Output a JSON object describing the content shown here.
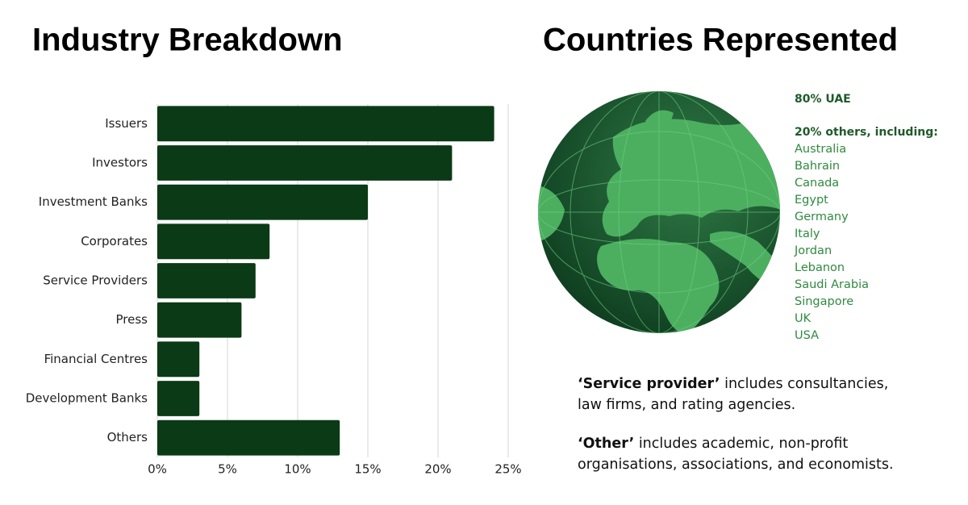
{
  "chart_data": {
    "type": "bar",
    "orientation": "horizontal",
    "title": "Industry Breakdown",
    "categories": [
      "Issuers",
      "Investors",
      "Investment Banks",
      "Corporates",
      "Service Providers",
      "Press",
      "Financial Centres",
      "Development Banks",
      "Others"
    ],
    "values": [
      24,
      21,
      15,
      8,
      7,
      6,
      3,
      3,
      13
    ],
    "color": "#0b3a16",
    "xlim": [
      0,
      25
    ],
    "xticks": [
      {
        "value": 0,
        "label": "0%"
      },
      {
        "value": 5,
        "label": "5%"
      },
      {
        "value": 10,
        "label": "10%"
      },
      {
        "value": 15,
        "label": "15%"
      },
      {
        "value": 20,
        "label": "20%"
      },
      {
        "value": 25,
        "label": "25%"
      }
    ],
    "grid": true
  },
  "countries": {
    "title": "Countries Represented",
    "uae": "80% UAE",
    "others_heading": "20% others, including:",
    "list": [
      "Australia",
      "Bahrain",
      "Canada",
      "Egypt",
      "Germany",
      "Italy",
      "Jordan",
      "Lebanon",
      "Saudi Arabia",
      "Singapore",
      "UK",
      "USA"
    ]
  },
  "notes": [
    {
      "term": "‘Service provider’",
      "text": "includes consultancies, law firms, and rating agencies."
    },
    {
      "term": "‘Other’",
      "text": "includes academic, non-profit organisations, associations, and economists."
    }
  ]
}
